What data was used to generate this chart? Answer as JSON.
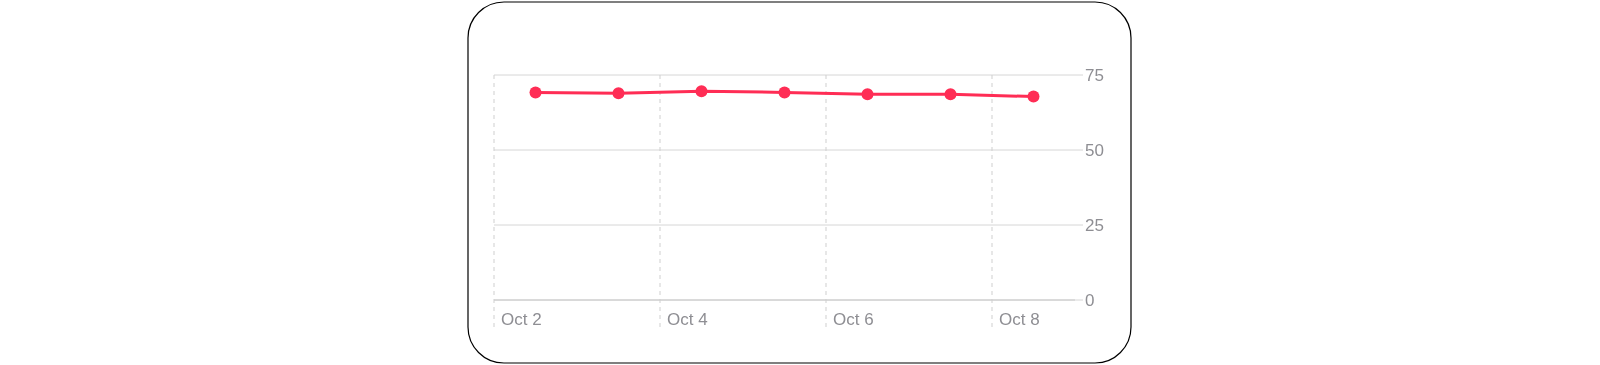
{
  "chart_data": {
    "type": "line",
    "categories": [
      "Oct 2",
      null,
      "Oct 4",
      null,
      "Oct 6",
      null,
      "Oct 8"
    ],
    "series": [
      {
        "color": "#ff2d55",
        "values": [
          69.2,
          68.9,
          69.6,
          69.2,
          68.6,
          68.6,
          67.8
        ]
      }
    ],
    "ylim": [
      0,
      75
    ],
    "yticks": [
      0,
      25,
      50,
      75
    ],
    "grid": true,
    "marker": "circle",
    "line_style": "solid"
  }
}
